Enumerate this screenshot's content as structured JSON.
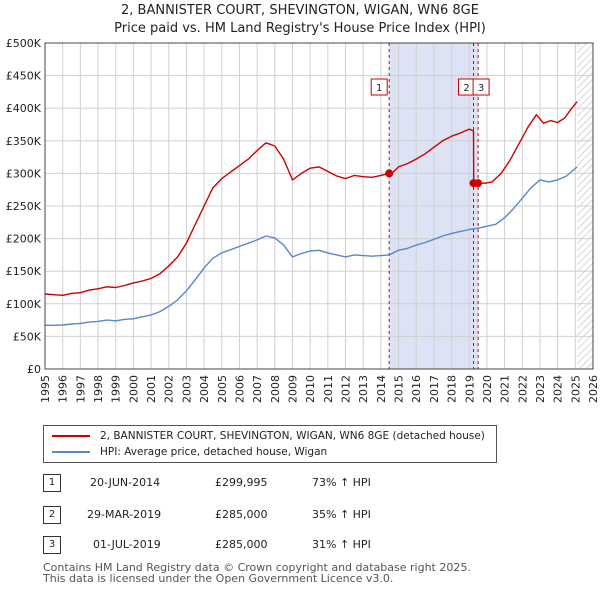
{
  "title_line1": "2, BANNISTER COURT, SHEVINGTON, WIGAN, WN6 8GE",
  "title_line2": "Price paid vs. HM Land Registry's House Price Index (HPI)",
  "chart_data": {
    "type": "line",
    "xlim": [
      1995,
      2026
    ],
    "ylim": [
      0,
      500000
    ],
    "y_ticks": [
      0,
      50000,
      100000,
      150000,
      200000,
      250000,
      300000,
      350000,
      400000,
      450000,
      500000
    ],
    "y_tick_labels": [
      "£0",
      "£50K",
      "£100K",
      "£150K",
      "£200K",
      "£250K",
      "£300K",
      "£350K",
      "£400K",
      "£450K",
      "£500K"
    ],
    "x_ticks": [
      1995,
      1996,
      1997,
      1998,
      1999,
      2000,
      2001,
      2002,
      2003,
      2004,
      2005,
      2006,
      2007,
      2008,
      2009,
      2010,
      2011,
      2012,
      2013,
      2014,
      2015,
      2016,
      2017,
      2018,
      2019,
      2020,
      2021,
      2022,
      2023,
      2024,
      2025,
      2026
    ],
    "shaded_period": [
      2014.47,
      2019.5
    ],
    "hatched_from": 2025.1,
    "series": [
      {
        "name": "2, BANNISTER COURT, SHEVINGTON, WIGAN, WN6 8GE (detached house)",
        "color": "#cc0000",
        "points": [
          [
            1995.0,
            115000
          ],
          [
            1995.5,
            114000
          ],
          [
            1996.0,
            113000
          ],
          [
            1996.5,
            116000
          ],
          [
            1997.0,
            117000
          ],
          [
            1997.5,
            121000
          ],
          [
            1998.0,
            123000
          ],
          [
            1998.5,
            126000
          ],
          [
            1999.0,
            125000
          ],
          [
            1999.5,
            128000
          ],
          [
            2000.0,
            132000
          ],
          [
            2000.5,
            135000
          ],
          [
            2001.0,
            139000
          ],
          [
            2001.5,
            146000
          ],
          [
            2002.0,
            158000
          ],
          [
            2002.5,
            172000
          ],
          [
            2003.0,
            193000
          ],
          [
            2003.5,
            222000
          ],
          [
            2004.0,
            250000
          ],
          [
            2004.5,
            278000
          ],
          [
            2005.0,
            292000
          ],
          [
            2005.5,
            302000
          ],
          [
            2006.0,
            312000
          ],
          [
            2006.5,
            322000
          ],
          [
            2007.0,
            335000
          ],
          [
            2007.5,
            347000
          ],
          [
            2008.0,
            342000
          ],
          [
            2008.5,
            322000
          ],
          [
            2009.0,
            290000
          ],
          [
            2009.5,
            300000
          ],
          [
            2010.0,
            308000
          ],
          [
            2010.5,
            310000
          ],
          [
            2011.0,
            303000
          ],
          [
            2011.5,
            296000
          ],
          [
            2012.0,
            292000
          ],
          [
            2012.5,
            297000
          ],
          [
            2013.0,
            295000
          ],
          [
            2013.5,
            294000
          ],
          [
            2014.0,
            297000
          ],
          [
            2014.47,
            299995
          ],
          [
            2014.7,
            302000
          ],
          [
            2015.0,
            310000
          ],
          [
            2015.5,
            315000
          ],
          [
            2016.0,
            322000
          ],
          [
            2016.5,
            330000
          ],
          [
            2017.0,
            340000
          ],
          [
            2017.5,
            350000
          ],
          [
            2018.0,
            357000
          ],
          [
            2018.5,
            362000
          ],
          [
            2019.0,
            368000
          ],
          [
            2019.24,
            365000
          ],
          [
            2019.25,
            285000
          ],
          [
            2019.5,
            285000
          ],
          [
            2019.9,
            285000
          ],
          [
            2020.3,
            287000
          ],
          [
            2020.8,
            300000
          ],
          [
            2021.3,
            320000
          ],
          [
            2021.8,
            345000
          ],
          [
            2022.3,
            370000
          ],
          [
            2022.8,
            390000
          ],
          [
            2023.2,
            377000
          ],
          [
            2023.6,
            381000
          ],
          [
            2024.0,
            378000
          ],
          [
            2024.4,
            385000
          ],
          [
            2024.8,
            400000
          ],
          [
            2025.1,
            410000
          ]
        ]
      },
      {
        "name": "HPI: Average price, detached house, Wigan",
        "color": "#5588cc",
        "points": [
          [
            1995.0,
            67000
          ],
          [
            1995.5,
            67000
          ],
          [
            1996.0,
            67500
          ],
          [
            1996.5,
            69000
          ],
          [
            1997.0,
            70000
          ],
          [
            1997.5,
            72000
          ],
          [
            1998.0,
            73000
          ],
          [
            1998.5,
            75000
          ],
          [
            1999.0,
            74000
          ],
          [
            1999.5,
            76000
          ],
          [
            2000.0,
            77000
          ],
          [
            2000.5,
            80000
          ],
          [
            2001.0,
            83000
          ],
          [
            2001.5,
            88000
          ],
          [
            2002.0,
            96000
          ],
          [
            2002.5,
            106000
          ],
          [
            2003.0,
            120000
          ],
          [
            2003.5,
            137000
          ],
          [
            2004.0,
            155000
          ],
          [
            2004.5,
            170000
          ],
          [
            2005.0,
            178000
          ],
          [
            2005.5,
            183000
          ],
          [
            2006.0,
            188000
          ],
          [
            2006.5,
            193000
          ],
          [
            2007.0,
            198000
          ],
          [
            2007.5,
            204000
          ],
          [
            2008.0,
            201000
          ],
          [
            2008.5,
            190000
          ],
          [
            2009.0,
            172000
          ],
          [
            2009.5,
            177000
          ],
          [
            2010.0,
            181000
          ],
          [
            2010.5,
            182000
          ],
          [
            2011.0,
            178000
          ],
          [
            2011.5,
            175000
          ],
          [
            2012.0,
            172000
          ],
          [
            2012.5,
            175000
          ],
          [
            2013.0,
            174000
          ],
          [
            2013.5,
            173000
          ],
          [
            2014.0,
            174000
          ],
          [
            2014.47,
            175000
          ],
          [
            2015.0,
            182000
          ],
          [
            2015.5,
            185000
          ],
          [
            2016.0,
            190000
          ],
          [
            2016.5,
            194000
          ],
          [
            2017.0,
            199000
          ],
          [
            2017.5,
            204000
          ],
          [
            2018.0,
            208000
          ],
          [
            2018.5,
            211000
          ],
          [
            2019.0,
            214000
          ],
          [
            2019.5,
            216000
          ],
          [
            2020.0,
            219000
          ],
          [
            2020.5,
            222000
          ],
          [
            2021.0,
            232000
          ],
          [
            2021.5,
            246000
          ],
          [
            2022.0,
            262000
          ],
          [
            2022.5,
            278000
          ],
          [
            2023.0,
            290000
          ],
          [
            2023.5,
            287000
          ],
          [
            2024.0,
            290000
          ],
          [
            2024.5,
            296000
          ],
          [
            2025.1,
            310000
          ]
        ]
      }
    ],
    "sales": [
      {
        "label": "1",
        "x": 2014.47,
        "y": 299995
      },
      {
        "label": "2",
        "x": 2019.24,
        "y": 285000
      },
      {
        "label": "3",
        "x": 2019.5,
        "y": 285000
      }
    ],
    "colors": {
      "shade": "#dde3f5",
      "grid": "#d0d0d0"
    }
  },
  "legend": {
    "property_label": "2, BANNISTER COURT, SHEVINGTON, WIGAN, WN6 8GE (detached house)",
    "hpi_label": "HPI: Average price, detached house, Wigan"
  },
  "transactions": [
    {
      "num": "1",
      "date": "20-JUN-2014",
      "price": "£299,995",
      "hpi": "73% ↑ HPI"
    },
    {
      "num": "2",
      "date": "29-MAR-2019",
      "price": "£285,000",
      "hpi": "35% ↑ HPI"
    },
    {
      "num": "3",
      "date": "01-JUL-2019",
      "price": "£285,000",
      "hpi": "31% ↑ HPI"
    }
  ],
  "footer_line1": "Contains HM Land Registry data © Crown copyright and database right 2025.",
  "footer_line2": "This data is licensed under the Open Government Licence v3.0."
}
